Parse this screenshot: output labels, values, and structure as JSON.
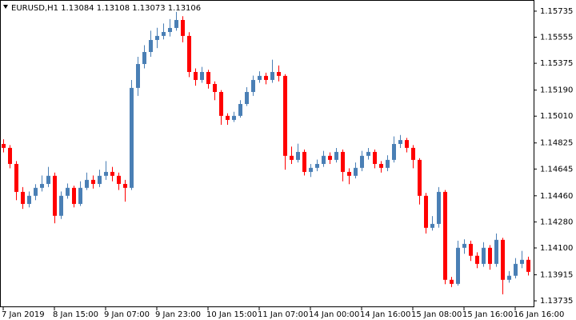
{
  "chart_data": {
    "type": "candlestick",
    "header": "EURUSD,H1  1.13084 1.13108 1.13073 1.13106",
    "bull_color": "#4a7fb5",
    "bear_color": "#ff0000",
    "ylim": [
      1.13691,
      1.15812
    ],
    "yticks": [
      1.15735,
      1.15555,
      1.15375,
      {
        "value": 1.1519,
        "label": "1.15190"
      },
      {
        "value": 1.1501,
        "label": "1.15010"
      },
      1.14825,
      1.14645,
      {
        "value": 1.1446,
        "label": "1.14460"
      },
      {
        "value": 1.1428,
        "label": "1.14280"
      },
      {
        "value": 1.141,
        "label": "1.14100"
      },
      1.13915,
      1.13735
    ],
    "xlim": [
      -0.5,
      82.875
    ],
    "xticks": [
      {
        "value": 0,
        "label": "7 Jan 2019"
      },
      {
        "value": 8,
        "label": "8 Jan 15:00"
      },
      {
        "value": 16,
        "label": "9 Jan 07:00"
      },
      {
        "value": 24,
        "label": "9 Jan 23:00"
      },
      {
        "value": 32,
        "label": "10 Jan 15:00"
      },
      {
        "value": 40,
        "label": "11 Jan 07:00"
      },
      {
        "value": 48,
        "label": "14 Jan 00:00"
      },
      {
        "value": 56,
        "label": "14 Jan 16:00"
      },
      {
        "value": 64,
        "label": "15 Jan 08:00"
      },
      {
        "value": 72,
        "label": "15 Jan 16:00"
      },
      {
        "value": 80,
        "label": "16 Jan 16:00"
      }
    ],
    "candles": [
      [
        1.14818,
        1.1485,
        1.1476,
        1.14791
      ],
      [
        1.14791,
        1.1481,
        1.1465,
        1.1468
      ],
      [
        1.1468,
        1.147,
        1.1443,
        1.14487
      ],
      [
        1.14487,
        1.1452,
        1.1437,
        1.14404
      ],
      [
        1.14404,
        1.1449,
        1.1438,
        1.1446
      ],
      [
        1.1446,
        1.1454,
        1.1443,
        1.14515
      ],
      [
        1.14515,
        1.146,
        1.1449,
        1.14542
      ],
      [
        1.14542,
        1.1466,
        1.1452,
        1.14598
      ],
      [
        1.14598,
        1.1462,
        1.1427,
        1.14322
      ],
      [
        1.14322,
        1.1449,
        1.143,
        1.1446
      ],
      [
        1.1446,
        1.14545,
        1.1444,
        1.14515
      ],
      [
        1.14515,
        1.1453,
        1.1438,
        1.14404
      ],
      [
        1.14404,
        1.1456,
        1.1439,
        1.14515
      ],
      [
        1.14515,
        1.1462,
        1.145,
        1.1457
      ],
      [
        1.1457,
        1.146,
        1.1451,
        1.14542
      ],
      [
        1.14542,
        1.1464,
        1.1452,
        1.14598
      ],
      [
        1.14598,
        1.147,
        1.1457,
        1.14625
      ],
      [
        1.14625,
        1.1466,
        1.1456,
        1.14598
      ],
      [
        1.14598,
        1.1462,
        1.145,
        1.14542
      ],
      [
        1.14542,
        1.1457,
        1.1442,
        1.14515
      ],
      [
        1.14515,
        1.1526,
        1.145,
        1.15205
      ],
      [
        1.15205,
        1.1542,
        1.1515,
        1.1537
      ],
      [
        1.1537,
        1.155,
        1.1534,
        1.15453
      ],
      [
        1.15453,
        1.156,
        1.1542,
        1.15536
      ],
      [
        1.15536,
        1.1562,
        1.1548,
        1.15564
      ],
      [
        1.15564,
        1.1565,
        1.1554,
        1.15591
      ],
      [
        1.15591,
        1.1568,
        1.1556,
        1.15619
      ],
      [
        1.15619,
        1.1573,
        1.156,
        1.15674
      ],
      [
        1.15674,
        1.157,
        1.1552,
        1.15564
      ],
      [
        1.15564,
        1.1559,
        1.1528,
        1.15315
      ],
      [
        1.15315,
        1.1534,
        1.1522,
        1.1526
      ],
      [
        1.1526,
        1.1535,
        1.1524,
        1.15315
      ],
      [
        1.15315,
        1.1533,
        1.152,
        1.15232
      ],
      [
        1.15232,
        1.1525,
        1.1512,
        1.15177
      ],
      [
        1.15177,
        1.1519,
        1.1495,
        1.15012
      ],
      [
        1.15012,
        1.1503,
        1.1495,
        1.14984
      ],
      [
        1.14984,
        1.1504,
        1.1497,
        1.15012
      ],
      [
        1.15012,
        1.1512,
        1.15,
        1.15094
      ],
      [
        1.15094,
        1.1521,
        1.1508,
        1.15177
      ],
      [
        1.15177,
        1.1529,
        1.1515,
        1.1526
      ],
      [
        1.1526,
        1.1532,
        1.1524,
        1.15288
      ],
      [
        1.15288,
        1.1531,
        1.1523,
        1.1526
      ],
      [
        1.1526,
        1.154,
        1.1524,
        1.15315
      ],
      [
        1.15315,
        1.1536,
        1.1525,
        1.15288
      ],
      [
        1.15288,
        1.153,
        1.1464,
        1.14736
      ],
      [
        1.14736,
        1.148,
        1.1468,
        1.14708
      ],
      [
        1.14708,
        1.1482,
        1.1469,
        1.14763
      ],
      [
        1.14763,
        1.1478,
        1.146,
        1.14625
      ],
      [
        1.14625,
        1.1468,
        1.1459,
        1.14653
      ],
      [
        1.14653,
        1.1471,
        1.1463,
        1.1468
      ],
      [
        1.1468,
        1.1477,
        1.1466,
        1.14736
      ],
      [
        1.14736,
        1.1476,
        1.1468,
        1.14708
      ],
      [
        1.14708,
        1.1479,
        1.1469,
        1.14763
      ],
      [
        1.14763,
        1.1478,
        1.1456,
        1.14625
      ],
      [
        1.14625,
        1.1465,
        1.1454,
        1.14598
      ],
      [
        1.14598,
        1.1469,
        1.1458,
        1.14653
      ],
      [
        1.14653,
        1.1477,
        1.1463,
        1.14736
      ],
      [
        1.14736,
        1.1479,
        1.1471,
        1.14763
      ],
      [
        1.14763,
        1.1478,
        1.1465,
        1.1468
      ],
      [
        1.1468,
        1.147,
        1.1462,
        1.14653
      ],
      [
        1.14653,
        1.1474,
        1.1463,
        1.14708
      ],
      [
        1.14708,
        1.1487,
        1.1469,
        1.14818
      ],
      [
        1.14818,
        1.1488,
        1.1479,
        1.14845
      ],
      [
        1.14845,
        1.1486,
        1.1476,
        1.14791
      ],
      [
        1.14791,
        1.1481,
        1.1465,
        1.14708
      ],
      [
        1.14708,
        1.1472,
        1.144,
        1.1446
      ],
      [
        1.1446,
        1.1448,
        1.142,
        1.14239
      ],
      [
        1.14239,
        1.1432,
        1.1422,
        1.14266
      ],
      [
        1.14266,
        1.1452,
        1.1424,
        1.14487
      ],
      [
        1.14487,
        1.145,
        1.1385,
        1.1388
      ],
      [
        1.1388,
        1.139,
        1.1383,
        1.13852
      ],
      [
        1.13852,
        1.1415,
        1.1384,
        1.14101
      ],
      [
        1.14101,
        1.1416,
        1.1406,
        1.14128
      ],
      [
        1.14128,
        1.1415,
        1.1401,
        1.14046
      ],
      [
        1.14046,
        1.1407,
        1.1396,
        1.1399
      ],
      [
        1.1399,
        1.1414,
        1.1397,
        1.14101
      ],
      [
        1.14101,
        1.1412,
        1.1395,
        1.1399
      ],
      [
        1.1399,
        1.142,
        1.1397,
        1.14156
      ],
      [
        1.14156,
        1.1417,
        1.1378,
        1.1388
      ],
      [
        1.1388,
        1.1394,
        1.1386,
        1.13908
      ],
      [
        1.13908,
        1.1403,
        1.1389,
        1.1399
      ],
      [
        1.1399,
        1.1408,
        1.1396,
        1.14018
      ],
      [
        1.14018,
        1.1404,
        1.1391,
        1.13935
      ]
    ]
  }
}
